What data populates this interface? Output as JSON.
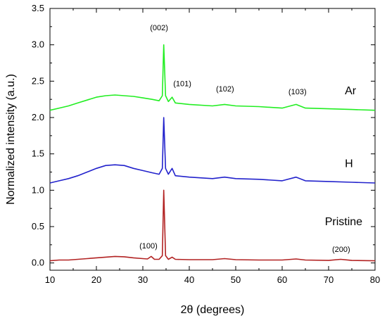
{
  "chart_data": {
    "type": "line",
    "xlabel": "2θ (degrees)",
    "ylabel": "Normalized intensity (a.u.)",
    "xlim": [
      10,
      80
    ],
    "ylim": [
      -0.1,
      3.5
    ],
    "x_ticks": [
      10,
      20,
      30,
      40,
      50,
      60,
      70,
      80
    ],
    "y_ticks": [
      0.0,
      0.5,
      1.0,
      1.5,
      2.0,
      2.5,
      3.0,
      3.5
    ],
    "y_tick_labels": [
      "0.0",
      "0.5",
      "1.0",
      "1.5",
      "2.0",
      "2.5",
      "3.0",
      "3.5"
    ],
    "grid": false,
    "series": [
      {
        "name": "Pristine",
        "color": "#b22222",
        "x": [
          10,
          12,
          14,
          16,
          18,
          20,
          22,
          24,
          26,
          28,
          30,
          31,
          31.8,
          32.5,
          33.5,
          34.2,
          34.5,
          34.9,
          35.5,
          36.3,
          37,
          40,
          45,
          47.6,
          50,
          55,
          60,
          63,
          65,
          70,
          72.6,
          75,
          80
        ],
        "y": [
          0.03,
          0.04,
          0.04,
          0.05,
          0.06,
          0.07,
          0.08,
          0.09,
          0.085,
          0.07,
          0.06,
          0.055,
          0.09,
          0.05,
          0.05,
          0.1,
          1.0,
          0.1,
          0.05,
          0.08,
          0.05,
          0.045,
          0.045,
          0.06,
          0.045,
          0.04,
          0.04,
          0.055,
          0.04,
          0.035,
          0.05,
          0.035,
          0.03
        ]
      },
      {
        "name": "H",
        "color": "#2222cc",
        "x": [
          10,
          12,
          14,
          16,
          18,
          20,
          22,
          24,
          26,
          28,
          30,
          32,
          33.5,
          34.2,
          34.5,
          34.9,
          35.5,
          36.3,
          37,
          40,
          45,
          47.6,
          50,
          55,
          60,
          63,
          65,
          70,
          75,
          80
        ],
        "y": [
          1.1,
          1.13,
          1.16,
          1.2,
          1.25,
          1.3,
          1.34,
          1.35,
          1.34,
          1.3,
          1.27,
          1.24,
          1.22,
          1.3,
          2.0,
          1.3,
          1.22,
          1.3,
          1.2,
          1.18,
          1.16,
          1.18,
          1.16,
          1.15,
          1.13,
          1.18,
          1.13,
          1.12,
          1.11,
          1.1
        ]
      },
      {
        "name": "Ar",
        "color": "#22ee22",
        "x": [
          10,
          12,
          14,
          16,
          18,
          20,
          22,
          24,
          26,
          28,
          30,
          32,
          33.5,
          34.2,
          34.5,
          34.9,
          35.5,
          36.3,
          37,
          40,
          45,
          47.6,
          50,
          55,
          60,
          63,
          65,
          70,
          75,
          80
        ],
        "y": [
          2.1,
          2.13,
          2.16,
          2.2,
          2.24,
          2.28,
          2.3,
          2.31,
          2.3,
          2.29,
          2.27,
          2.25,
          2.23,
          2.3,
          3.0,
          2.3,
          2.22,
          2.28,
          2.2,
          2.18,
          2.16,
          2.18,
          2.16,
          2.15,
          2.13,
          2.18,
          2.13,
          2.12,
          2.11,
          2.1
        ]
      }
    ],
    "series_labels": [
      {
        "text": "Ar",
        "x": 73.5,
        "y": 2.32
      },
      {
        "text": "H",
        "x": 73.5,
        "y": 1.32
      },
      {
        "text": "Pristine",
        "x": 69.2,
        "y": 0.52
      }
    ],
    "annotations": [
      {
        "text": "(002)",
        "x": 33.5,
        "y": 3.2
      },
      {
        "text": "(101)",
        "x": 38.5,
        "y": 2.43
      },
      {
        "text": "(102)",
        "x": 47.7,
        "y": 2.36
      },
      {
        "text": "(103)",
        "x": 63.3,
        "y": 2.32
      },
      {
        "text": "(100)",
        "x": 31.2,
        "y": 0.2
      },
      {
        "text": "(200)",
        "x": 72.7,
        "y": 0.15
      }
    ]
  }
}
